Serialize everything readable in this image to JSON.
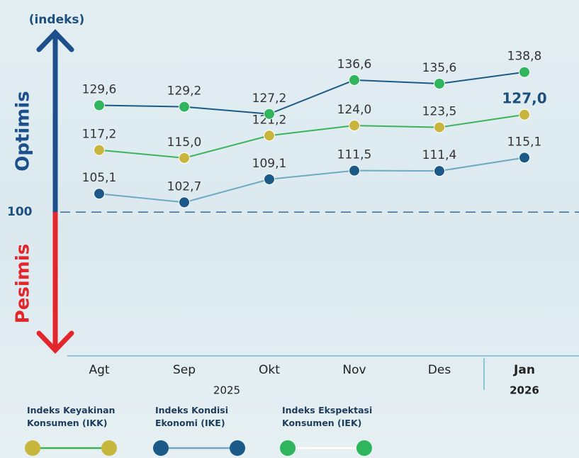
{
  "chart_data": {
    "type": "line",
    "y_label": "(indeks)",
    "upper_label": "Optimis",
    "lower_label": "Pesimis",
    "categories": [
      "Agt",
      "Sep",
      "Okt",
      "Nov",
      "Des",
      "Jan"
    ],
    "years": [
      "2025",
      "2026"
    ],
    "ylim": [
      62.5,
      147
    ],
    "yticks": [
      100
    ],
    "series": [
      {
        "name": "Indeks Keyakinan Konsumen (IKK)",
        "marker_color": "#c8b53c",
        "color": "#3db35c",
        "values": [
          117.2,
          115.0,
          121.2,
          124.0,
          123.5,
          127.0
        ],
        "value_labels": [
          "117,2",
          "115,0",
          "121,2",
          "124,0",
          "123,5",
          "127,0"
        ]
      },
      {
        "name": "Indeks Kondisi Ekonomi (IKE)",
        "marker_color": "#1b5a88",
        "color": "#6fa9c4",
        "values": [
          105.1,
          102.7,
          109.1,
          111.5,
          111.4,
          115.1
        ],
        "value_labels": [
          "105,1",
          "102,7",
          "109,1",
          "111,5",
          "111,4",
          "115,1"
        ]
      },
      {
        "name": "Indeks Ekspektasi Konsumen (IEK)",
        "marker_color": "#2fb55c",
        "color": "#1d5a86",
        "legend_line_color": "#ffffff",
        "values": [
          129.6,
          129.2,
          127.2,
          136.6,
          135.6,
          138.8
        ],
        "value_labels": [
          "129,6",
          "129,2",
          "127,2",
          "136,6",
          "135,6",
          "138,8"
        ]
      }
    ]
  }
}
